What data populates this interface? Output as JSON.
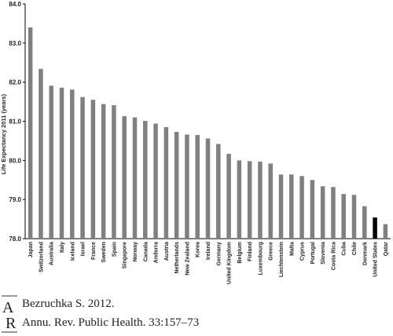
{
  "chart_data": {
    "type": "bar",
    "ylabel": "Life Expectancy 2011 (years)",
    "ylim": [
      78.0,
      84.0
    ],
    "yticks": [
      "78.0",
      "79.0",
      "80.0",
      "81.0",
      "82.0",
      "83.0",
      "84.0"
    ],
    "categories": [
      "Japan",
      "Switzerland",
      "Australia",
      "Italy",
      "Iceland",
      "Israel",
      "France",
      "Sweden",
      "Spain",
      "Singapore",
      "Norway",
      "Canada",
      "Andorra",
      "Austria",
      "Netherlands",
      "New Zealand",
      "Korea",
      "Ireland",
      "Germany",
      "United Kingdom",
      "Belgium",
      "Finland",
      "Luxembourg",
      "Greece",
      "Liechtenstein",
      "Malta",
      "Cyprus",
      "Portugal",
      "Slovenia",
      "Costa Rica",
      "Cuba",
      "Chile",
      "Denmark",
      "United States",
      "Qatar"
    ],
    "values": [
      83.4,
      82.34,
      81.91,
      81.86,
      81.81,
      81.62,
      81.55,
      81.44,
      81.41,
      81.13,
      81.1,
      81.01,
      80.94,
      80.85,
      80.73,
      80.66,
      80.65,
      80.56,
      80.42,
      80.17,
      80.0,
      79.98,
      79.97,
      79.92,
      79.64,
      79.64,
      79.6,
      79.5,
      79.34,
      79.32,
      79.14,
      79.12,
      78.83,
      78.54,
      78.37
    ],
    "bar_color": "#808080",
    "highlight_color": "#000000",
    "highlight_category": "United States",
    "grid": false,
    "legend": "none"
  },
  "citation": {
    "logo_letters": "AR",
    "line1": "Bezruchka S. 2012.",
    "line2": "Annu. Rev. Public Health. 33:157–73"
  }
}
